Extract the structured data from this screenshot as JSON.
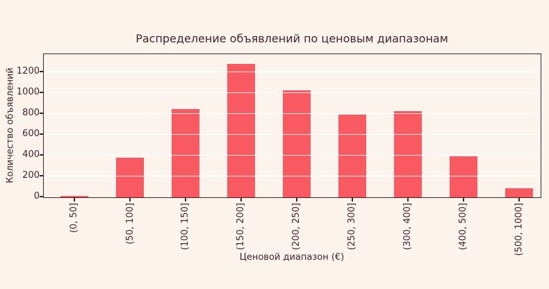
{
  "figure": {
    "title": "Распределение объявлений по ценовым диапазонам",
    "xlabel": "Ценовой диапазон (€)",
    "ylabel": "Количество объявлений"
  },
  "chart_data": {
    "type": "bar",
    "title": "Распределение объявлений по ценовым диапазонам",
    "xlabel": "Ценовой диапазон (€)",
    "ylabel": "Количество объявлений",
    "categories": [
      "(0, 50]",
      "(50, 100]",
      "(100, 150]",
      "(150, 200]",
      "(200, 250]",
      "(250, 300]",
      "(300, 400]",
      "(400, 500]",
      "(500, 1000]"
    ],
    "values": [
      12,
      380,
      845,
      1275,
      1025,
      790,
      825,
      390,
      85
    ],
    "yticks": [
      0,
      200,
      400,
      600,
      800,
      1000,
      1200
    ],
    "ylim": [
      0,
      1367
    ],
    "grid": "horizontal-white-over-bars",
    "legend": "none",
    "bar_color": "#f95a61",
    "background_color": "#fdf3ed",
    "text_color": "#40232d",
    "axis_color": "#3a2428"
  }
}
